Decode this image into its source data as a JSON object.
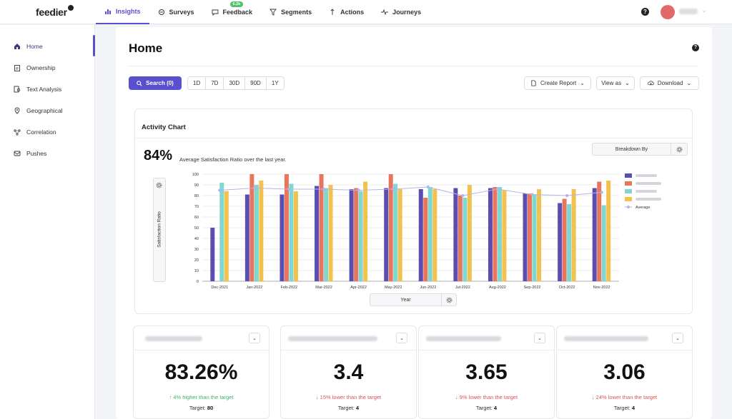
{
  "app": {
    "logo": "feedier"
  },
  "nav": {
    "items": [
      {
        "label": "Insights",
        "icon": "bar-chart-icon",
        "active": true
      },
      {
        "label": "Surveys",
        "icon": "surveys-icon",
        "active": false
      },
      {
        "label": "Feedback",
        "icon": "chat-icon",
        "active": false,
        "badge": "6.2k"
      },
      {
        "label": "Segments",
        "icon": "filter-icon",
        "active": false
      },
      {
        "label": "Actions",
        "icon": "actions-icon",
        "active": false
      },
      {
        "label": "Journeys",
        "icon": "pulse-icon",
        "active": false
      }
    ],
    "help": "?"
  },
  "sidebar": {
    "items": [
      {
        "label": "Home",
        "icon": "home-icon",
        "active": true
      },
      {
        "label": "Ownership",
        "icon": "clipboard-icon",
        "active": false
      },
      {
        "label": "Text Analysis",
        "icon": "text-analysis-icon",
        "active": false
      },
      {
        "label": "Geographical",
        "icon": "map-pin-icon",
        "active": false
      },
      {
        "label": "Correlation",
        "icon": "correlation-icon",
        "active": false
      },
      {
        "label": "Pushes",
        "icon": "pushes-icon",
        "active": false
      }
    ]
  },
  "main": {
    "title": "Home",
    "help": "?",
    "search_label": "Search (0)",
    "ranges": [
      "1D",
      "7D",
      "30D",
      "90D",
      "1Y"
    ],
    "create_report": "Create Report",
    "view_as": "View as",
    "download": "Download"
  },
  "activity": {
    "title": "Activity Chart",
    "big_pct": "84%",
    "caption": "Average Satisfaction Ratio over the last year.",
    "breakdown_label": "Breakdown By",
    "ylabel": "Satisfaction Ratio",
    "xlabel": "Year"
  },
  "chart_data": {
    "type": "bar",
    "categories": [
      "Dec-2021",
      "Jan-2022",
      "Feb-2022",
      "Mar-2022",
      "Apr-2022",
      "May-2022",
      "Jun-2022",
      "Jul-2022",
      "Aug-2022",
      "Sep-2022",
      "Oct-2022",
      "Nov-2022"
    ],
    "yticks": [
      0,
      10,
      20,
      30,
      40,
      50,
      60,
      70,
      80,
      90,
      100
    ],
    "ylim": [
      0,
      100
    ],
    "grid": true,
    "legend_position": "right",
    "series": [
      {
        "values": [
          50,
          81,
          81,
          89,
          86,
          87,
          86,
          87,
          87,
          82,
          73,
          87
        ],
        "color": "#5a4fb0"
      },
      {
        "values": [
          null,
          100,
          100,
          100,
          87,
          100,
          78,
          80,
          88,
          82,
          77,
          93
        ],
        "color": "#e8765f"
      },
      {
        "values": [
          92,
          90,
          91,
          87,
          84,
          91,
          88,
          78,
          88,
          81,
          72,
          71
        ],
        "color": "#7fd8cf"
      },
      {
        "values": [
          84,
          94,
          84,
          90,
          93,
          86,
          86,
          90,
          85,
          86,
          86,
          94
        ],
        "color": "#f2c14e"
      }
    ],
    "line": {
      "name": "Average",
      "values": [
        85,
        87,
        86,
        86,
        85,
        86,
        88,
        80,
        86,
        81,
        80,
        83
      ],
      "color": "#b7b3e6"
    }
  },
  "kpis": [
    {
      "value": "83.26%",
      "change": "4% higher than the target",
      "direction": "up",
      "target_label": "Target:",
      "target": "80"
    },
    {
      "value": "3.4",
      "change": "15% lower than the target",
      "direction": "down",
      "target_label": "Target:",
      "target": "4"
    },
    {
      "value": "3.65",
      "change": "9% lower than the target",
      "direction": "down",
      "target_label": "Target:",
      "target": "4"
    },
    {
      "value": "3.06",
      "change": "24% lower than the target",
      "direction": "down",
      "target_label": "Target:",
      "target": "4"
    }
  ]
}
